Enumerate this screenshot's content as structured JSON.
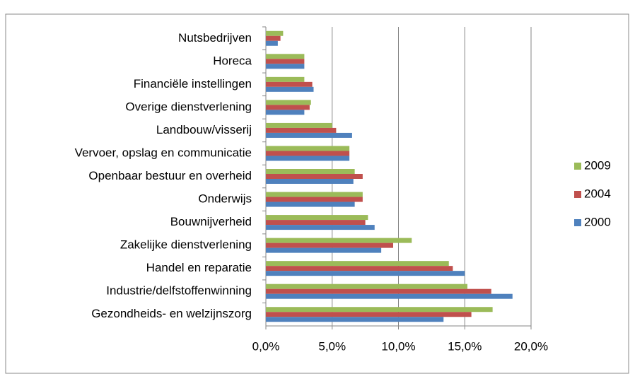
{
  "chart_data": {
    "type": "bar",
    "orientation": "horizontal",
    "categories": [
      "Nutsbedrijven",
      "Horeca",
      "Financiële instellingen",
      "Overige dienstverlening",
      "Landbouw/visserij",
      "Vervoer, opslag en communicatie",
      "Openbaar bestuur en overheid",
      "Onderwijs",
      "Bouwnijverheid",
      "Zakelijke dienstverlening",
      "Handel en reparatie",
      "Industrie/delfstoffenwinning",
      "Gezondheids- en welzijnszorg"
    ],
    "series": [
      {
        "name": "2009",
        "color": "#9bbb59",
        "values": [
          1.3,
          2.9,
          2.9,
          3.4,
          5.0,
          6.3,
          6.7,
          7.3,
          7.7,
          11.0,
          13.8,
          15.2,
          17.1
        ]
      },
      {
        "name": "2004",
        "color": "#c0504d",
        "values": [
          1.1,
          2.9,
          3.5,
          3.3,
          5.3,
          6.3,
          7.3,
          7.3,
          7.5,
          9.6,
          14.1,
          17.0,
          15.5
        ]
      },
      {
        "name": "2000",
        "color": "#4f81bd",
        "values": [
          0.9,
          2.9,
          3.6,
          2.9,
          6.5,
          6.3,
          6.6,
          6.7,
          8.2,
          8.7,
          15.0,
          18.6,
          13.4
        ]
      }
    ],
    "xlim": [
      0,
      20
    ],
    "xticks": [
      {
        "value": 0,
        "label": "0,0%"
      },
      {
        "value": 5,
        "label": "5,0%"
      },
      {
        "value": 10,
        "label": "10,0%"
      },
      {
        "value": 15,
        "label": "15,0%"
      },
      {
        "value": 20,
        "label": "20,0%"
      }
    ],
    "grid": true,
    "legend": "right"
  }
}
